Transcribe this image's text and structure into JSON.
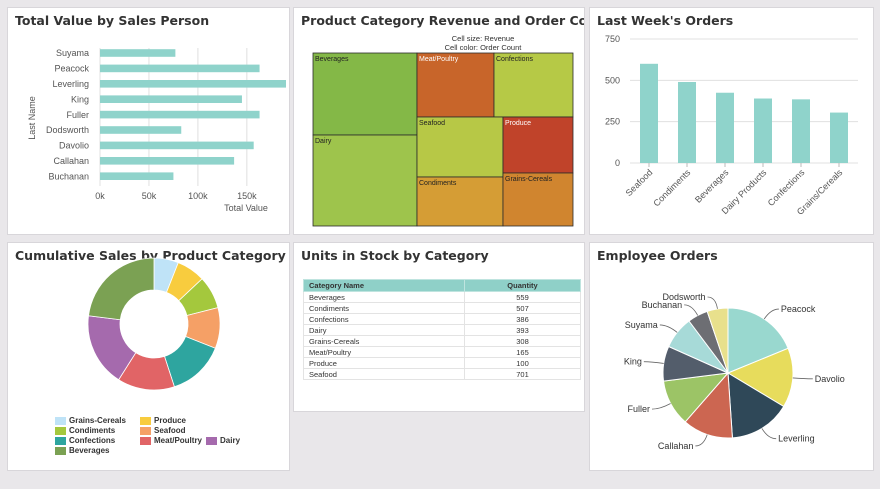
{
  "colors": {
    "bar": "#8fd3cb",
    "grid": "#e0e0e0",
    "axis": "#555555",
    "text": "#555555"
  },
  "panels": {
    "sales_person": {
      "title": "Total Value by Sales Person"
    },
    "treemap": {
      "title": "Product Category Revenue and Order Count",
      "note_size": "Cell size: Revenue",
      "note_color": "Cell color: Order Count"
    },
    "weekly": {
      "title": "Last Week's Orders"
    },
    "cumulative": {
      "title": "Cumulative Sales by Product Category"
    },
    "stock": {
      "title": "Units in Stock by Category",
      "col_name": "Category Name",
      "col_qty": "Quantity"
    },
    "employee": {
      "title": "Employee Orders"
    }
  },
  "chart_data": [
    {
      "id": "sales_person",
      "type": "bar",
      "orientation": "horizontal",
      "title": "Total Value by Sales Person",
      "xlabel": "Total Value",
      "ylabel": "Last Name",
      "categories": [
        "Suyama",
        "Peacock",
        "Leverling",
        "King",
        "Fuller",
        "Dodsworth",
        "Davolio",
        "Callahan",
        "Buchanan"
      ],
      "values": [
        77000,
        163000,
        190000,
        145000,
        163000,
        83000,
        157000,
        137000,
        75000
      ],
      "xlim": [
        0,
        190000
      ],
      "ticks": [
        0,
        50000,
        100000,
        150000
      ],
      "tick_labels": [
        "0k",
        "50k",
        "100k",
        "150k"
      ],
      "grid": true
    },
    {
      "id": "treemap",
      "type": "treemap",
      "title": "Product Category Revenue and Order Count",
      "cells": [
        {
          "label": "Beverages",
          "color": "#84b847",
          "text": "#222222"
        },
        {
          "label": "Meat/Poultry",
          "color": "#c8652a",
          "text": "#ffffff"
        },
        {
          "label": "Confections",
          "color": "#b6c946",
          "text": "#222222"
        },
        {
          "label": "Dairy",
          "color": "#9ec44c",
          "text": "#222222"
        },
        {
          "label": "Seafood",
          "color": "#b7c846",
          "text": "#222222"
        },
        {
          "label": "Produce",
          "color": "#c0432a",
          "text": "#ffffff"
        },
        {
          "label": "Condiments",
          "color": "#d59d35",
          "text": "#222222"
        },
        {
          "label": "Grains-Cereals",
          "color": "#d0852f",
          "text": "#222222"
        }
      ]
    },
    {
      "id": "weekly",
      "type": "bar",
      "title": "Last Week's Orders",
      "categories": [
        "Seafood",
        "Condiments",
        "Beverages",
        "Dairy Products",
        "Confections",
        "Grains/Cereals"
      ],
      "values": [
        600,
        490,
        425,
        390,
        385,
        305
      ],
      "ylim": [
        0,
        750
      ],
      "ticks": [
        0,
        250,
        500,
        750
      ],
      "grid": true
    },
    {
      "id": "cumulative",
      "type": "pie",
      "variant": "donut",
      "title": "Cumulative Sales by Product Category",
      "slices": [
        {
          "label": "Grains-Cereals",
          "value": 6,
          "color": "#bfe3f7"
        },
        {
          "label": "Produce",
          "value": 7,
          "color": "#f8cc3e"
        },
        {
          "label": "Condiments",
          "value": 8,
          "color": "#a4c83d"
        },
        {
          "label": "Seafood",
          "value": 10,
          "color": "#f5a066"
        },
        {
          "label": "Confections",
          "value": 14,
          "color": "#2ea59f"
        },
        {
          "label": "Meat/Poultry",
          "value": 14,
          "color": "#e16466"
        },
        {
          "label": "Dairy",
          "value": 18,
          "color": "#a56aad"
        },
        {
          "label": "Beverages",
          "value": 23,
          "color": "#7ba153"
        }
      ],
      "legend_position": "bottom"
    },
    {
      "id": "stock",
      "type": "table",
      "title": "Units in Stock by Category",
      "columns": [
        "Category Name",
        "Quantity"
      ],
      "rows": [
        [
          "Beverages",
          "559"
        ],
        [
          "Condiments",
          "507"
        ],
        [
          "Confections",
          "386"
        ],
        [
          "Dairy",
          "393"
        ],
        [
          "Grains-Cereals",
          "308"
        ],
        [
          "Meat/Poultry",
          "165"
        ],
        [
          "Produce",
          "100"
        ],
        [
          "Seafood",
          "701"
        ]
      ]
    },
    {
      "id": "employee",
      "type": "pie",
      "title": "Employee Orders",
      "slices": [
        {
          "label": "Peacock",
          "value": 156,
          "color": "#99d8cf"
        },
        {
          "label": "Davolio",
          "value": 123,
          "color": "#e7dc5c"
        },
        {
          "label": "Leverling",
          "value": 127,
          "color": "#2f4858"
        },
        {
          "label": "Callahan",
          "value": 104,
          "color": "#cc6651"
        },
        {
          "label": "Fuller",
          "value": 96,
          "color": "#9cc466"
        },
        {
          "label": "King",
          "value": 72,
          "color": "#535d6b"
        },
        {
          "label": "Suyama",
          "value": 67,
          "color": "#a7dad8"
        },
        {
          "label": "Buchanan",
          "value": 42,
          "color": "#6d6e73"
        },
        {
          "label": "Dodsworth",
          "value": 43,
          "color": "#e8e08c"
        }
      ]
    }
  ]
}
